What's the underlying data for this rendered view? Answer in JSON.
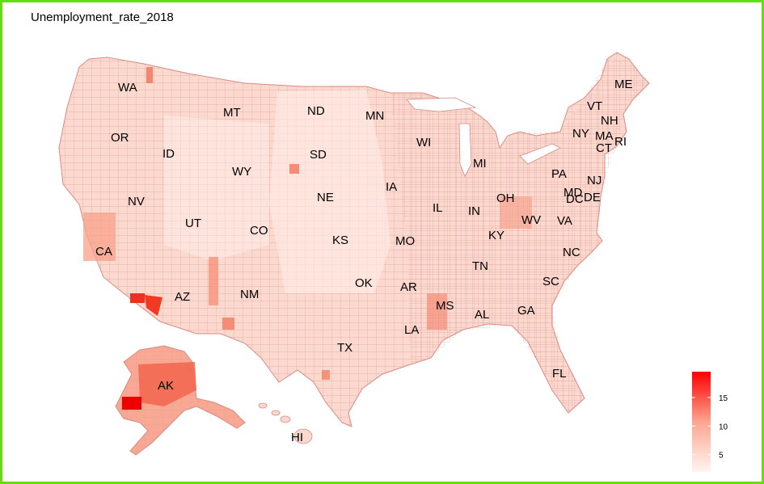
{
  "title": "Unemployment_rate_2018",
  "colors": {
    "border": "#66dd11",
    "low": "#fff5f2",
    "high": "#ff0000",
    "county_line": "#e8a7a0"
  },
  "states": [
    {
      "abbr": "WA"
    },
    {
      "abbr": "OR"
    },
    {
      "abbr": "CA"
    },
    {
      "abbr": "ID"
    },
    {
      "abbr": "NV"
    },
    {
      "abbr": "MT"
    },
    {
      "abbr": "WY"
    },
    {
      "abbr": "UT"
    },
    {
      "abbr": "AZ"
    },
    {
      "abbr": "CO"
    },
    {
      "abbr": "NM"
    },
    {
      "abbr": "ND"
    },
    {
      "abbr": "SD"
    },
    {
      "abbr": "NE"
    },
    {
      "abbr": "KS"
    },
    {
      "abbr": "OK"
    },
    {
      "abbr": "TX"
    },
    {
      "abbr": "MN"
    },
    {
      "abbr": "IA"
    },
    {
      "abbr": "MO"
    },
    {
      "abbr": "AR"
    },
    {
      "abbr": "LA"
    },
    {
      "abbr": "WI"
    },
    {
      "abbr": "IL"
    },
    {
      "abbr": "MS"
    },
    {
      "abbr": "MI"
    },
    {
      "abbr": "IN"
    },
    {
      "abbr": "KY"
    },
    {
      "abbr": "TN"
    },
    {
      "abbr": "AL"
    },
    {
      "abbr": "OH"
    },
    {
      "abbr": "WV"
    },
    {
      "abbr": "GA"
    },
    {
      "abbr": "FL"
    },
    {
      "abbr": "SC"
    },
    {
      "abbr": "NC"
    },
    {
      "abbr": "VA"
    },
    {
      "abbr": "PA"
    },
    {
      "abbr": "MD"
    },
    {
      "abbr": "DC"
    },
    {
      "abbr": "DE"
    },
    {
      "abbr": "NJ"
    },
    {
      "abbr": "NY"
    },
    {
      "abbr": "CT"
    },
    {
      "abbr": "RI"
    },
    {
      "abbr": "MA"
    },
    {
      "abbr": "NH"
    },
    {
      "abbr": "VT"
    },
    {
      "abbr": "ME"
    },
    {
      "abbr": "AK"
    },
    {
      "abbr": "HI"
    }
  ],
  "legend": {
    "ticks": [
      "15",
      "10",
      "5"
    ],
    "tick_values": [
      15,
      10,
      5
    ],
    "min": 2,
    "max": 19.5
  }
}
